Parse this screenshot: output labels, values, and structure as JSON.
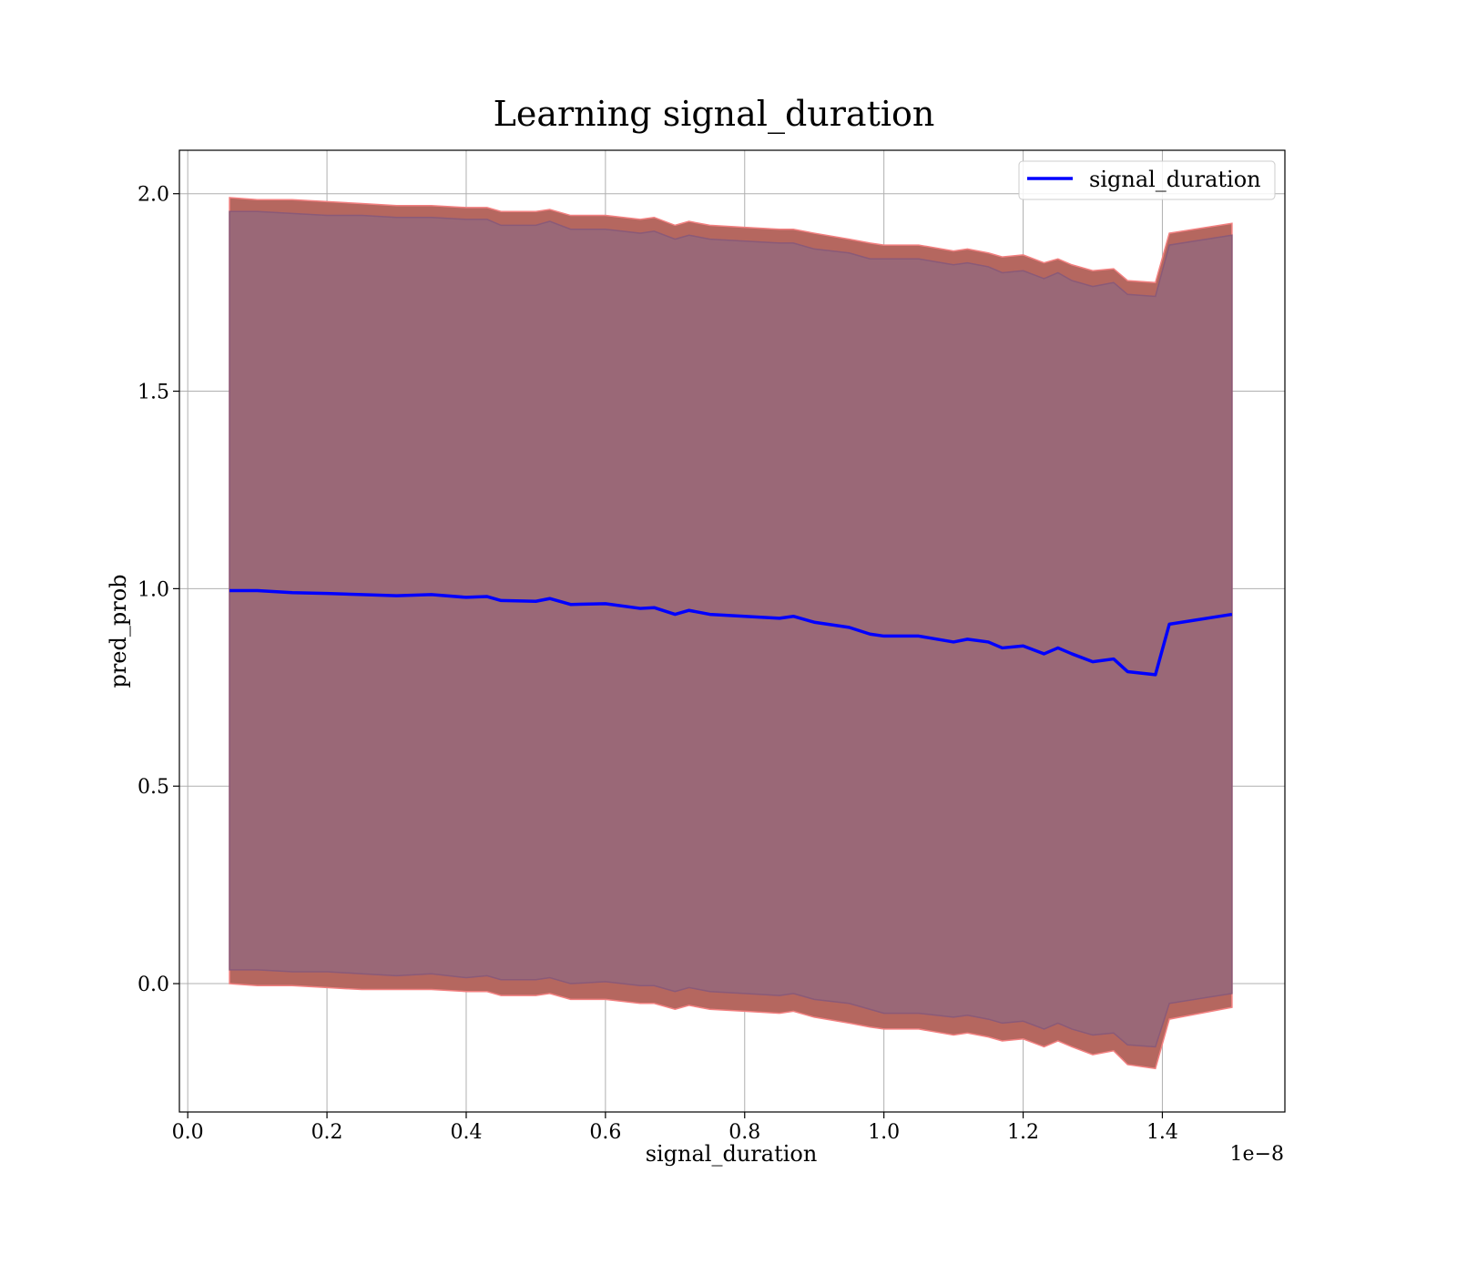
{
  "chart_data": {
    "type": "line",
    "title": "Learning signal_duration",
    "xlabel": "signal_duration",
    "ylabel": "pred_prob",
    "x_offset_text": "1e−8",
    "xlim": [
      -0.012,
      1.576
    ],
    "ylim": [
      -0.325,
      2.11
    ],
    "xticks": [
      0.0,
      0.2,
      0.4,
      0.6,
      0.8,
      1.0,
      1.2,
      1.4
    ],
    "xtick_labels": [
      "0.0",
      "0.2",
      "0.4",
      "0.6",
      "0.8",
      "1.0",
      "1.2",
      "1.4"
    ],
    "yticks": [
      0.0,
      0.5,
      1.0,
      1.5,
      2.0
    ],
    "ytick_labels": [
      "0.0",
      "0.5",
      "1.0",
      "1.5",
      "2.0"
    ],
    "grid": true,
    "legend": {
      "position": "upper right",
      "entries": [
        "signal_duration"
      ]
    },
    "colors": {
      "line": "#0000ff",
      "outer_band": "#b5675f",
      "outer_edge": "#f28080",
      "inner_band": "#9a6877",
      "inner_edge": "#8a5a78",
      "grid": "#b0b0b0"
    },
    "series": [
      {
        "name": "signal_duration",
        "x": [
          0.06,
          0.1,
          0.15,
          0.2,
          0.25,
          0.3,
          0.35,
          0.4,
          0.43,
          0.45,
          0.5,
          0.52,
          0.55,
          0.6,
          0.65,
          0.67,
          0.7,
          0.72,
          0.75,
          0.8,
          0.85,
          0.87,
          0.9,
          0.95,
          0.98,
          1.0,
          1.05,
          1.1,
          1.12,
          1.15,
          1.17,
          1.2,
          1.23,
          1.25,
          1.27,
          1.3,
          1.33,
          1.35,
          1.39,
          1.41,
          1.5
        ],
        "y": [
          0.995,
          0.995,
          0.99,
          0.988,
          0.985,
          0.982,
          0.985,
          0.978,
          0.98,
          0.97,
          0.968,
          0.975,
          0.96,
          0.962,
          0.95,
          0.952,
          0.935,
          0.945,
          0.935,
          0.93,
          0.925,
          0.93,
          0.915,
          0.902,
          0.885,
          0.88,
          0.88,
          0.865,
          0.872,
          0.865,
          0.85,
          0.855,
          0.835,
          0.85,
          0.835,
          0.815,
          0.822,
          0.79,
          0.782,
          0.91,
          0.935
        ],
        "upper_outer": [
          1.99,
          1.985,
          1.985,
          1.98,
          1.975,
          1.97,
          1.97,
          1.965,
          1.965,
          1.955,
          1.955,
          1.96,
          1.945,
          1.945,
          1.935,
          1.94,
          1.92,
          1.93,
          1.92,
          1.915,
          1.91,
          1.91,
          1.9,
          1.885,
          1.875,
          1.87,
          1.87,
          1.855,
          1.86,
          1.85,
          1.84,
          1.845,
          1.825,
          1.835,
          1.82,
          1.805,
          1.81,
          1.78,
          1.775,
          1.9,
          1.925
        ],
        "upper_inner": [
          1.955,
          1.955,
          1.95,
          1.945,
          1.945,
          1.94,
          1.94,
          1.935,
          1.935,
          1.92,
          1.92,
          1.93,
          1.91,
          1.91,
          1.9,
          1.905,
          1.885,
          1.895,
          1.885,
          1.88,
          1.875,
          1.875,
          1.86,
          1.85,
          1.835,
          1.835,
          1.835,
          1.82,
          1.825,
          1.815,
          1.8,
          1.805,
          1.785,
          1.8,
          1.78,
          1.765,
          1.775,
          1.745,
          1.74,
          1.87,
          1.895
        ],
        "lower_inner": [
          0.035,
          0.035,
          0.03,
          0.03,
          0.025,
          0.02,
          0.025,
          0.015,
          0.02,
          0.01,
          0.01,
          0.015,
          0.0,
          0.005,
          -0.005,
          -0.005,
          -0.02,
          -0.01,
          -0.02,
          -0.025,
          -0.03,
          -0.025,
          -0.04,
          -0.05,
          -0.065,
          -0.075,
          -0.075,
          -0.085,
          -0.08,
          -0.09,
          -0.1,
          -0.095,
          -0.115,
          -0.1,
          -0.115,
          -0.13,
          -0.125,
          -0.155,
          -0.16,
          -0.05,
          -0.025
        ],
        "lower_outer": [
          0.0,
          -0.005,
          -0.005,
          -0.01,
          -0.015,
          -0.015,
          -0.015,
          -0.02,
          -0.02,
          -0.03,
          -0.03,
          -0.025,
          -0.04,
          -0.04,
          -0.05,
          -0.05,
          -0.065,
          -0.055,
          -0.065,
          -0.07,
          -0.075,
          -0.07,
          -0.085,
          -0.1,
          -0.11,
          -0.115,
          -0.115,
          -0.13,
          -0.125,
          -0.135,
          -0.145,
          -0.14,
          -0.16,
          -0.145,
          -0.16,
          -0.18,
          -0.17,
          -0.205,
          -0.215,
          -0.09,
          -0.06
        ]
      }
    ]
  }
}
